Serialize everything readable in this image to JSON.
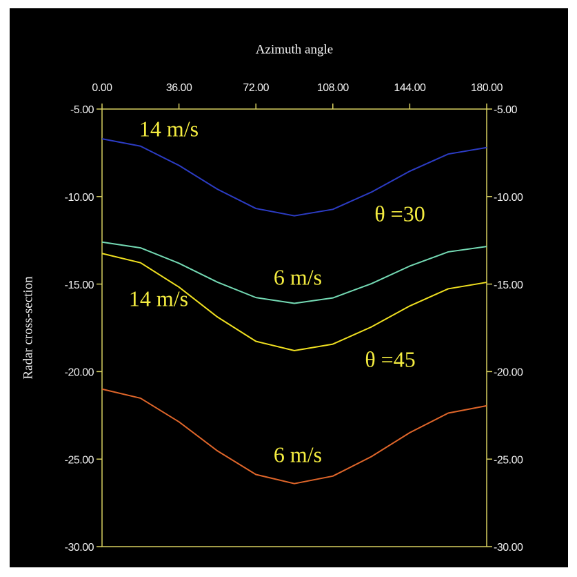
{
  "chart_data": {
    "type": "line",
    "x_label": "Azimuth angle",
    "y_label": "Radar cross-section",
    "x": [
      0,
      18,
      36,
      54,
      72,
      90,
      108,
      126,
      144,
      162,
      180
    ],
    "xlim": [
      0,
      180
    ],
    "xticks": [
      {
        "value": 0,
        "label": "0.00"
      },
      {
        "value": 36,
        "label": "36.00"
      },
      {
        "value": 72,
        "label": "72.00"
      },
      {
        "value": 108,
        "label": "108.00"
      },
      {
        "value": 144,
        "label": "144.00"
      },
      {
        "value": 180,
        "label": "180.00"
      }
    ],
    "ylim": [
      -30,
      -5
    ],
    "yticks": [
      {
        "value": -5,
        "label": "-5.00"
      },
      {
        "value": -10,
        "label": "-10.00"
      },
      {
        "value": -15,
        "label": "-15.00"
      },
      {
        "value": -20,
        "label": "-20.00"
      },
      {
        "value": -25,
        "label": "-25.00"
      },
      {
        "value": -30,
        "label": "-30.00"
      }
    ],
    "y2lim": [
      -30,
      -5
    ],
    "y2ticks": [
      {
        "value": -5,
        "label": "-5.00"
      },
      {
        "value": -10,
        "label": "-10.00"
      },
      {
        "value": -15,
        "label": "-15.00"
      },
      {
        "value": -20,
        "label": "-20.00"
      },
      {
        "value": -25,
        "label": "-25.00"
      },
      {
        "value": -30,
        "label": "-30.00"
      }
    ],
    "series": [
      {
        "color": "#2c3cc4",
        "values": [
          -6.7,
          -7.12,
          -8.22,
          -9.58,
          -10.68,
          -11.1,
          -10.73,
          -9.75,
          -8.55,
          -7.57,
          -7.2
        ]
      },
      {
        "color": "#74dab4",
        "values": [
          -12.6,
          -12.93,
          -13.81,
          -14.89,
          -15.77,
          -16.1,
          -15.79,
          -14.98,
          -13.97,
          -13.16,
          -12.85
        ]
      },
      {
        "color": "#f0e020",
        "values": [
          -13.25,
          -13.78,
          -15.17,
          -16.88,
          -18.27,
          -18.8,
          -18.43,
          -17.45,
          -16.25,
          -15.27,
          -14.9
        ]
      },
      {
        "color": "#e0662a",
        "values": [
          -21.0,
          -21.52,
          -22.87,
          -24.53,
          -25.88,
          -26.4,
          -25.97,
          -24.86,
          -23.49,
          -22.37,
          -21.95
        ]
      }
    ],
    "annotations": [
      "14 m/s",
      "θ =30",
      "6 m/s",
      "14 m/s",
      "θ =45",
      "6 m/s"
    ]
  }
}
